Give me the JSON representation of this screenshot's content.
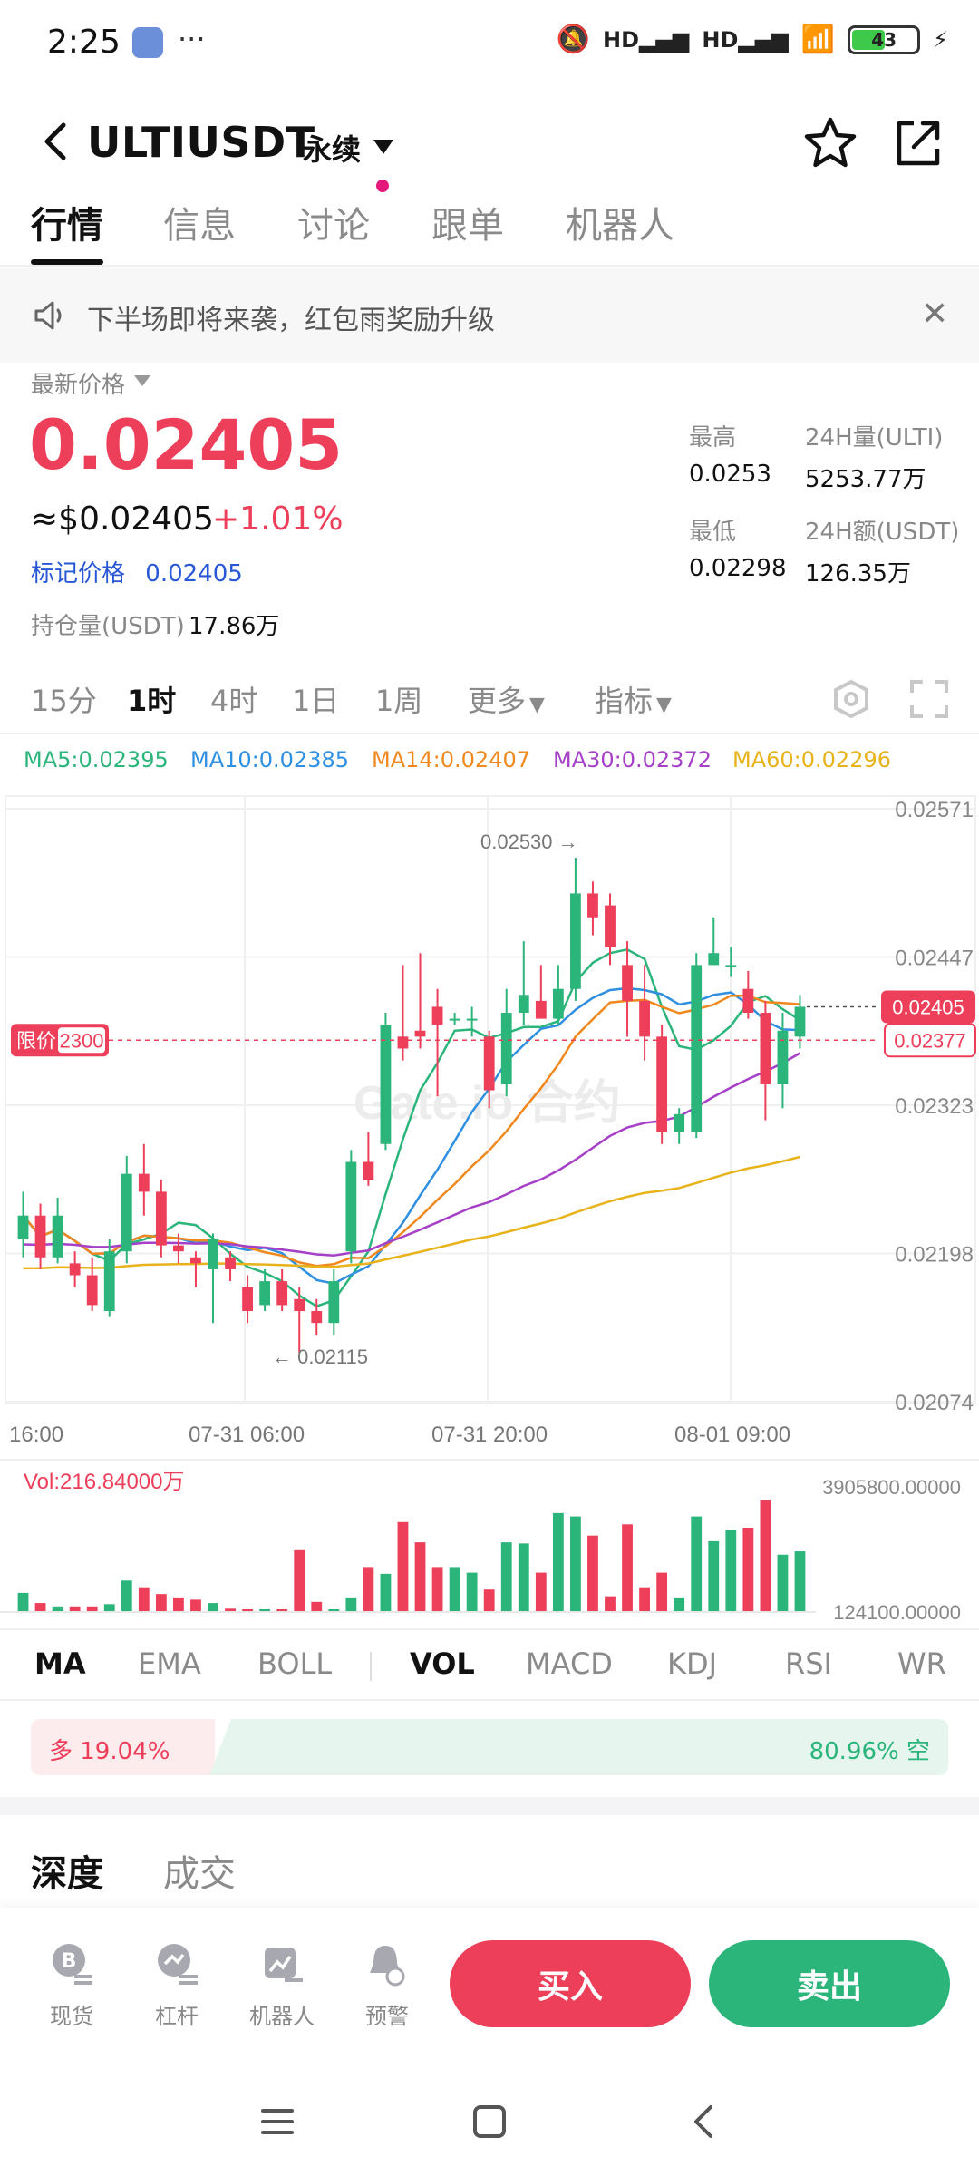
{
  "status": {
    "time": "2:25",
    "battery": "43",
    "signal_1": "HD",
    "signal_2": "HD"
  },
  "header": {
    "pair": "ULTIUSDT",
    "contract_type": "永续"
  },
  "tabs": [
    {
      "label": "行情",
      "active": true
    },
    {
      "label": "信息",
      "active": false
    },
    {
      "label": "讨论",
      "active": false
    },
    {
      "label": "跟单",
      "active": false
    },
    {
      "label": "机器人",
      "active": false
    }
  ],
  "notice": {
    "text": "下半场即将来袭，红包雨奖励升级"
  },
  "price": {
    "latest_label": "最新价格",
    "last": "0.02405",
    "usd": "≈$0.02405",
    "change": "+1.01%",
    "mark_label": "标记价格",
    "mark_value": "0.02405",
    "oi_label": "持仓量(USDT)",
    "oi_value": "17.86万"
  },
  "stats": {
    "high_label": "最高",
    "high": "0.0253",
    "low_label": "最低",
    "low": "0.02298",
    "vol_label": "24H量(ULTI)",
    "vol": "5253.77万",
    "amt_label": "24H额(USDT)",
    "amt": "126.35万"
  },
  "intervals": [
    {
      "label": "15分",
      "active": false
    },
    {
      "label": "1时",
      "active": true
    },
    {
      "label": "4时",
      "active": false
    },
    {
      "label": "1日",
      "active": false
    },
    {
      "label": "1周",
      "active": false
    },
    {
      "label": "更多",
      "active": false
    },
    {
      "label": "指标",
      "active": false
    }
  ],
  "ma_legend": [
    {
      "label": "MA5:0.02395",
      "color": "#2bb57b"
    },
    {
      "label": "MA10:0.02385",
      "color": "#2f8fe0"
    },
    {
      "label": "MA14:0.02407",
      "color": "#f0881e"
    },
    {
      "label": "MA30:0.02372",
      "color": "#a640c8"
    },
    {
      "label": "MA60:0.02296",
      "color": "#e8b21a"
    }
  ],
  "colors": {
    "up": "#ee3f5a",
    "down": "#2bb57b"
  },
  "chart_data": {
    "type": "candlestick",
    "price_axis": [
      "0.02571",
      "0.02447",
      "0.02323",
      "0.02198",
      "0.02074"
    ],
    "ylim": [
      0.02074,
      0.02571
    ],
    "time_labels": [
      "16:00",
      "07-31 06:00",
      "07-31 20:00",
      "08-01 09:00"
    ],
    "high_annotation": "0.02530",
    "low_annotation": "0.02115",
    "last_price_tag": "0.02405",
    "limit_label": "限价",
    "limit_value": "2300",
    "limit_price_tag": "0.02377",
    "watermark": "Gate.io 合约",
    "candles": [
      [
        0.0221,
        0.0223,
        0.0225,
        0.02195
      ],
      [
        0.0223,
        0.02195,
        0.0224,
        0.02185
      ],
      [
        0.02195,
        0.0223,
        0.02245,
        0.0219
      ],
      [
        0.0219,
        0.0218,
        0.022,
        0.0217
      ],
      [
        0.0218,
        0.02155,
        0.02195,
        0.0215
      ],
      [
        0.0215,
        0.022,
        0.0221,
        0.02145
      ],
      [
        0.022,
        0.02265,
        0.0228,
        0.0219
      ],
      [
        0.02265,
        0.0225,
        0.0229,
        0.0223
      ],
      [
        0.0225,
        0.02205,
        0.0226,
        0.02195
      ],
      [
        0.02205,
        0.022,
        0.02215,
        0.0219
      ],
      [
        0.02195,
        0.0219,
        0.022,
        0.0217
      ],
      [
        0.02185,
        0.0221,
        0.02215,
        0.0214
      ],
      [
        0.02195,
        0.02185,
        0.022,
        0.02175
      ],
      [
        0.0217,
        0.0215,
        0.0218,
        0.0214
      ],
      [
        0.02155,
        0.02175,
        0.02185,
        0.0215
      ],
      [
        0.02175,
        0.02155,
        0.02185,
        0.0215
      ],
      [
        0.0216,
        0.0215,
        0.0217,
        0.02115
      ],
      [
        0.0215,
        0.0214,
        0.0216,
        0.0213
      ],
      [
        0.0214,
        0.02175,
        0.02185,
        0.0213
      ],
      [
        0.022,
        0.02275,
        0.02285,
        0.0219
      ],
      [
        0.02275,
        0.0226,
        0.023,
        0.02255
      ],
      [
        0.0229,
        0.0239,
        0.024,
        0.02285
      ],
      [
        0.0238,
        0.0237,
        0.0244,
        0.0236
      ],
      [
        0.02385,
        0.0238,
        0.0245,
        0.0237
      ],
      [
        0.02405,
        0.0239,
        0.0242,
        0.0233
      ],
      [
        0.02395,
        0.02395,
        0.024,
        0.0239
      ],
      [
        0.02395,
        0.02395,
        0.02405,
        0.0238
      ],
      [
        0.0238,
        0.02335,
        0.02385,
        0.0232
      ],
      [
        0.0234,
        0.024,
        0.0242,
        0.0233
      ],
      [
        0.024,
        0.02415,
        0.0246,
        0.0239
      ],
      [
        0.0241,
        0.02395,
        0.0244,
        0.024
      ],
      [
        0.02395,
        0.0242,
        0.0244,
        0.0239
      ],
      [
        0.0242,
        0.025,
        0.0253,
        0.0241
      ],
      [
        0.025,
        0.0248,
        0.0251,
        0.02465
      ],
      [
        0.0249,
        0.02455,
        0.025,
        0.0244
      ],
      [
        0.0244,
        0.0241,
        0.0246,
        0.0238
      ],
      [
        0.0241,
        0.0238,
        0.0244,
        0.0236
      ],
      [
        0.0238,
        0.023,
        0.0239,
        0.0229
      ],
      [
        0.023,
        0.02315,
        0.0232,
        0.0229
      ],
      [
        0.023,
        0.0244,
        0.0245,
        0.02295
      ],
      [
        0.0244,
        0.0245,
        0.0248,
        0.0244
      ],
      [
        0.0244,
        0.0244,
        0.02455,
        0.0243
      ],
      [
        0.0242,
        0.024,
        0.02435,
        0.02395
      ],
      [
        0.024,
        0.0234,
        0.0241,
        0.0231
      ],
      [
        0.0234,
        0.02385,
        0.024,
        0.0232
      ],
      [
        0.0238,
        0.02405,
        0.02415,
        0.0237
      ]
    ],
    "volume_axis": [
      "3905800.00000",
      "124100.00000"
    ],
    "volume_label": "Vol:216.84000万",
    "volumes": [
      0.17,
      0.08,
      0.05,
      0.05,
      0.05,
      0.07,
      0.28,
      0.22,
      0.16,
      0.13,
      0.11,
      0.08,
      0.03,
      0.02,
      0.02,
      0.02,
      0.55,
      0.09,
      0.02,
      0.13,
      0.4,
      0.34,
      0.8,
      0.62,
      0.4,
      0.4,
      0.35,
      0.2,
      0.62,
      0.61,
      0.35,
      0.88,
      0.85,
      0.68,
      0.14,
      0.78,
      0.22,
      0.35,
      0.13,
      0.85,
      0.63,
      0.73,
      0.75,
      1.0,
      0.51,
      0.54
    ]
  },
  "indicators": [
    {
      "label": "MA",
      "active": true
    },
    {
      "label": "EMA",
      "active": false
    },
    {
      "label": "BOLL",
      "active": false
    },
    {
      "label": "VOL",
      "active": true
    },
    {
      "label": "MACD",
      "active": false
    },
    {
      "label": "KDJ",
      "active": false
    },
    {
      "label": "RSI",
      "active": false
    },
    {
      "label": "WR",
      "active": false
    }
  ],
  "long_short": {
    "long_text": "多 19.04%",
    "short_text": "80.96% 空",
    "long_ratio": 0.1904
  },
  "depth_tabs": {
    "depth": "深度",
    "trades": "成交"
  },
  "bottom": {
    "items": [
      {
        "label": "现货",
        "icon": "spot-icon"
      },
      {
        "label": "杠杆",
        "icon": "margin-icon"
      },
      {
        "label": "机器人",
        "icon": "robot-icon"
      },
      {
        "label": "预警",
        "icon": "alert-icon"
      }
    ],
    "buy": "买入",
    "sell": "卖出"
  }
}
